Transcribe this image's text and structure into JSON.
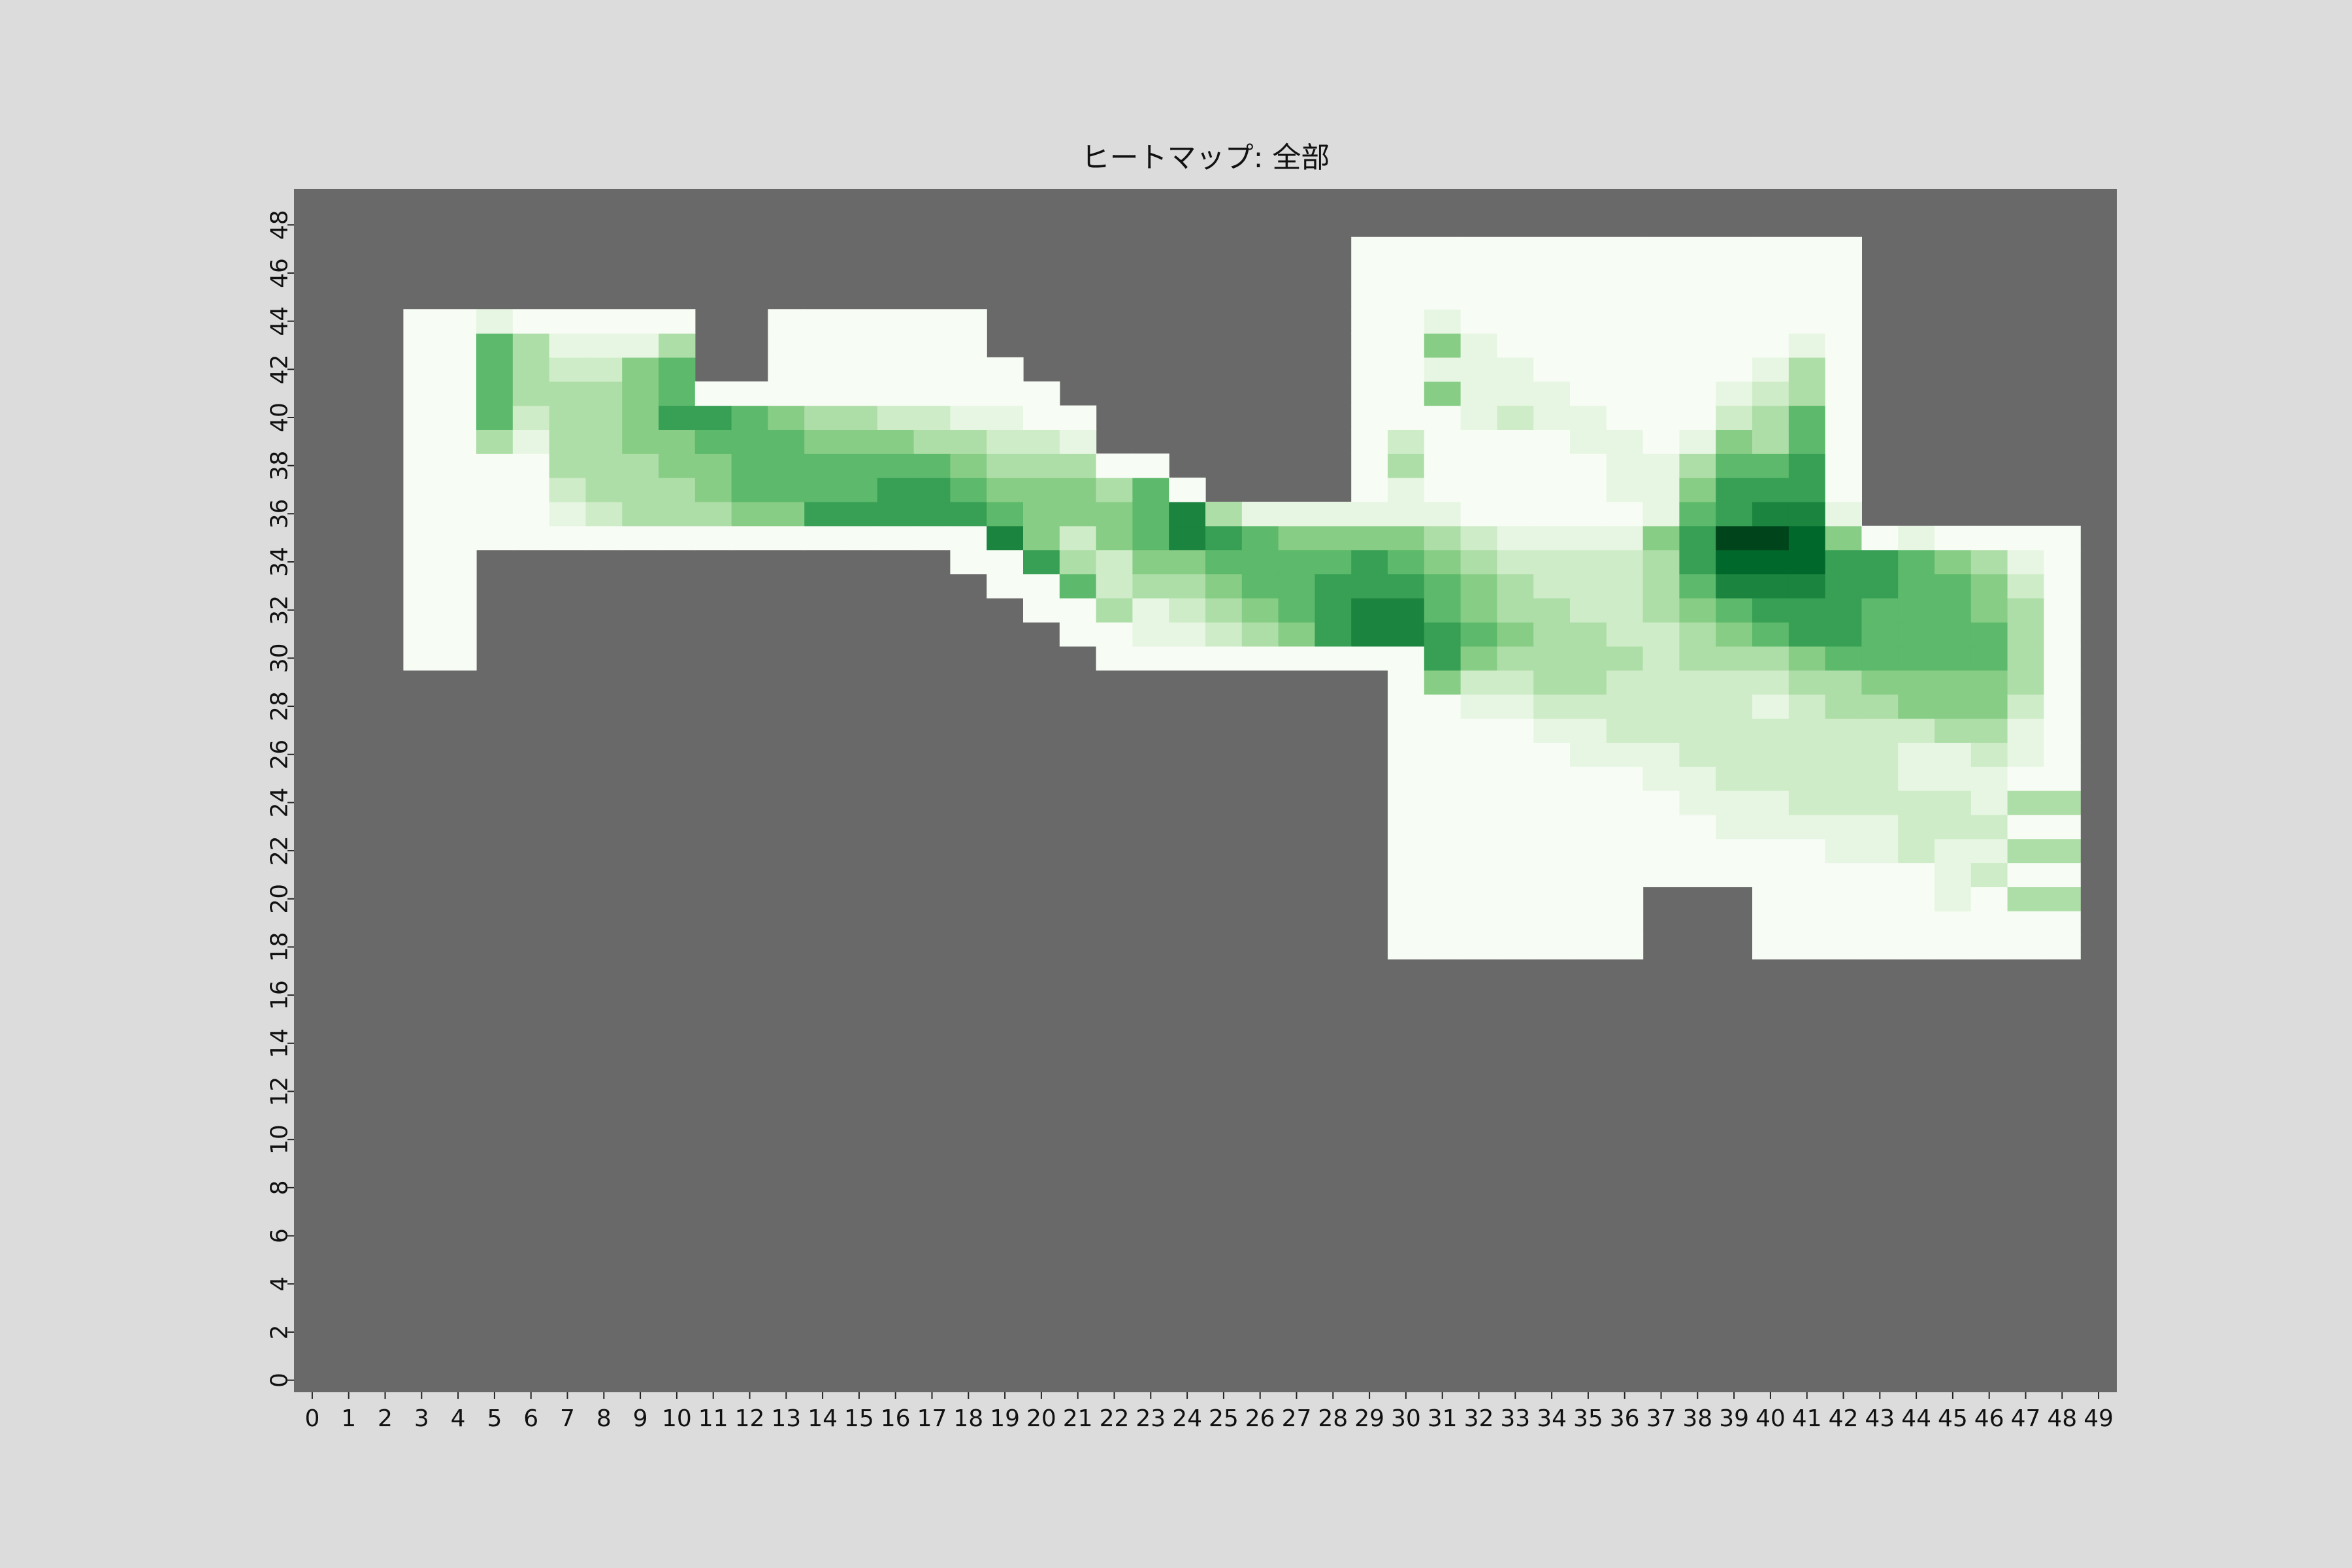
{
  "chart_data": {
    "type": "heatmap",
    "title": "ヒートマップ: 全部",
    "xlabel": "",
    "ylabel": "",
    "x_ticks": [
      "0",
      "1",
      "2",
      "3",
      "4",
      "5",
      "6",
      "7",
      "8",
      "9",
      "10",
      "11",
      "12",
      "13",
      "14",
      "15",
      "16",
      "17",
      "18",
      "19",
      "20",
      "21",
      "22",
      "23",
      "24",
      "25",
      "26",
      "27",
      "28",
      "29",
      "30",
      "31",
      "32",
      "33",
      "34",
      "35",
      "36",
      "37",
      "38",
      "39",
      "40",
      "41",
      "42",
      "43",
      "44",
      "45",
      "46",
      "47",
      "48",
      "49"
    ],
    "y_ticks": [
      "0",
      "2",
      "4",
      "6",
      "8",
      "10",
      "12",
      "14",
      "16",
      "18",
      "20",
      "22",
      "24",
      "26",
      "28",
      "30",
      "32",
      "34",
      "36",
      "38",
      "40",
      "42",
      "44",
      "46",
      "48"
    ],
    "grid_size": [
      50,
      50
    ],
    "colormap": "Greens",
    "value_range": [
      0,
      9
    ],
    "missing_color": "#696969",
    "cells": [
      {
        "x": 3,
        "y_range": [
          30,
          44
        ],
        "value": 0
      },
      {
        "x": 4,
        "y_range": [
          30,
          44
        ],
        "value": 0
      },
      {
        "x": 5,
        "y_values": {
          "35": 0,
          "36": 0,
          "37": 0,
          "38": 0,
          "39": 3,
          "40": 5,
          "41": 5,
          "42": 5,
          "43": 5,
          "44": 1
        }
      },
      {
        "x": 6,
        "y_values": {
          "35": 0,
          "36": 0,
          "37": 0,
          "38": 0,
          "39": 1,
          "40": 2,
          "41": 3,
          "42": 3,
          "43": 3,
          "44": 0
        }
      },
      {
        "x": 7,
        "y_values": {
          "35": 0,
          "36": 1,
          "37": 2,
          "38": 3,
          "39": 3,
          "40": 3,
          "41": 3,
          "42": 2,
          "43": 1,
          "44": 0
        }
      },
      {
        "x": 8,
        "y_values": {
          "35": 0,
          "36": 2,
          "37": 3,
          "38": 3,
          "39": 3,
          "40": 3,
          "41": 3,
          "42": 2,
          "43": 1,
          "44": 0
        }
      },
      {
        "x": 9,
        "y_values": {
          "35": 0,
          "36": 3,
          "37": 3,
          "38": 3,
          "39": 4,
          "40": 4,
          "41": 4,
          "42": 4,
          "43": 1,
          "44": 0
        }
      },
      {
        "x": 10,
        "y_values": {
          "35": 0,
          "36": 3,
          "37": 3,
          "38": 4,
          "39": 4,
          "40": 6,
          "41": 5,
          "42": 5,
          "43": 3,
          "44": 0
        }
      },
      {
        "x": 11,
        "y_values": {
          "35": 0,
          "36": 3,
          "37": 4,
          "38": 4,
          "39": 5,
          "40": 6,
          "41": 0
        }
      },
      {
        "x": 12,
        "y_values": {
          "35": 0,
          "36": 4,
          "37": 5,
          "38": 5,
          "39": 5,
          "40": 5,
          "41": 0
        }
      },
      {
        "x": 13,
        "y_values": {
          "35": 0,
          "36": 4,
          "37": 5,
          "38": 5,
          "39": 5,
          "40": 4,
          "41": 0,
          "42": 0,
          "43": 0,
          "44": 0
        }
      },
      {
        "x": 14,
        "y_values": {
          "35": 0,
          "36": 6,
          "37": 5,
          "38": 5,
          "39": 4,
          "40": 3,
          "41": 0,
          "42": 0,
          "43": 0,
          "44": 0
        }
      },
      {
        "x": 15,
        "y_values": {
          "35": 0,
          "36": 6,
          "37": 5,
          "38": 5,
          "39": 4,
          "40": 3,
          "41": 0,
          "42": 0,
          "43": 0,
          "44": 0
        }
      },
      {
        "x": 16,
        "y_values": {
          "35": 0,
          "36": 6,
          "37": 6,
          "38": 5,
          "39": 4,
          "40": 2,
          "41": 0,
          "42": 0,
          "43": 0,
          "44": 0
        }
      },
      {
        "x": 17,
        "y_values": {
          "35": 0,
          "36": 6,
          "37": 6,
          "38": 5,
          "39": 3,
          "40": 2,
          "41": 0,
          "42": 0,
          "43": 0,
          "44": 0
        }
      },
      {
        "x": 18,
        "y_values": {
          "34": 0,
          "35": 0,
          "36": 6,
          "37": 5,
          "38": 4,
          "39": 3,
          "40": 1,
          "41": 0,
          "42": 0,
          "43": 0,
          "44": 0
        }
      },
      {
        "x": 19,
        "y_values": {
          "33": 0,
          "34": 0,
          "35": 7,
          "36": 5,
          "37": 4,
          "38": 3,
          "39": 2,
          "40": 1,
          "41": 0,
          "42": 0
        }
      },
      {
        "x": 20,
        "y_values": {
          "32": 0,
          "33": 0,
          "34": 6,
          "35": 4,
          "36": 4,
          "37": 4,
          "38": 3,
          "39": 2,
          "40": 0,
          "41": 0
        }
      },
      {
        "x": 21,
        "y_values": {
          "31": 0,
          "32": 0,
          "33": 5,
          "34": 3,
          "35": 2,
          "36": 4,
          "37": 4,
          "38": 3,
          "39": 1,
          "40": 0
        }
      },
      {
        "x": 22,
        "y_values": {
          "30": 0,
          "31": 0,
          "32": 3,
          "33": 2,
          "34": 2,
          "35": 4,
          "36": 4,
          "37": 3,
          "38": 0
        }
      },
      {
        "x": 23,
        "y_values": {
          "30": 0,
          "31": 1,
          "32": 1,
          "33": 3,
          "34": 4,
          "35": 5,
          "36": 5,
          "37": 5,
          "38": 0
        }
      },
      {
        "x": 24,
        "y_values": {
          "30": 0,
          "31": 1,
          "32": 2,
          "33": 3,
          "34": 4,
          "35": 7,
          "36": 7,
          "37": 0
        }
      },
      {
        "x": 25,
        "y_values": {
          "30": 0,
          "31": 2,
          "32": 3,
          "33": 4,
          "34": 5,
          "35": 6,
          "36": 3
        }
      },
      {
        "x": 26,
        "y_values": {
          "30": 0,
          "31": 3,
          "32": 4,
          "33": 5,
          "34": 5,
          "35": 5,
          "36": 1
        }
      },
      {
        "x": 27,
        "y_values": {
          "30": 0,
          "31": 4,
          "32": 5,
          "33": 5,
          "34": 5,
          "35": 4,
          "36": 1
        }
      },
      {
        "x": 28,
        "y_values": {
          "30": 0,
          "31": 6,
          "32": 6,
          "33": 6,
          "34": 5,
          "35": 4,
          "36": 1
        }
      },
      {
        "x": 29,
        "y_values": {
          "30": 0,
          "31": 7,
          "32": 7,
          "33": 6,
          "34": 6,
          "35": 4,
          "36": 1,
          "37": 0,
          "38": 0,
          "39": 0,
          "40": 0,
          "41": 0,
          "42": 0,
          "43": 0,
          "44": 0,
          "45": 0,
          "46": 0,
          "47": 0
        }
      },
      {
        "x": 30,
        "y_range_fill": [
          18,
          47
        ],
        "value": 0,
        "y_values": {
          "29": 0,
          "30": 0,
          "31": 7,
          "32": 7,
          "33": 6,
          "34": 5,
          "35": 4,
          "36": 1,
          "37": 1,
          "38": 3,
          "39": 2
        }
      },
      {
        "x": 31,
        "y_range_fill": [
          18,
          47
        ],
        "value": 0,
        "y_values": {
          "29": 4,
          "30": 6,
          "31": 6,
          "32": 5,
          "33": 5,
          "34": 4,
          "35": 3,
          "36": 1,
          "41": 4,
          "43": 4,
          "44": 1,
          "42": 1
        }
      },
      {
        "x": 32,
        "y_range_fill": [
          18,
          47
        ],
        "value": 0,
        "y_values": {
          "28": 1,
          "29": 2,
          "30": 4,
          "31": 5,
          "32": 4,
          "33": 4,
          "34": 3,
          "35": 2,
          "40": 1,
          "41": 1,
          "42": 1,
          "43": 1
        }
      },
      {
        "x": 33,
        "y_range_fill": [
          18,
          47
        ],
        "value": 0,
        "y_values": {
          "27": 0,
          "28": 1,
          "29": 2,
          "30": 3,
          "31": 4,
          "32": 3,
          "33": 3,
          "34": 2,
          "35": 1,
          "40": 2,
          "41": 1,
          "42": 1
        }
      },
      {
        "x": 34,
        "y_range_fill": [
          18,
          47
        ],
        "value": 0,
        "y_values": {
          "27": 1,
          "28": 2,
          "29": 3,
          "30": 3,
          "31": 3,
          "32": 3,
          "33": 2,
          "34": 2,
          "35": 1,
          "40": 1,
          "41": 1
        }
      },
      {
        "x": 35,
        "y_range_fill": [
          18,
          47
        ],
        "value": 0,
        "y_values": {
          "26": 1,
          "27": 1,
          "28": 2,
          "29": 3,
          "30": 3,
          "31": 3,
          "32": 2,
          "33": 2,
          "34": 2,
          "35": 1,
          "39": 1,
          "40": 1
        }
      },
      {
        "x": 36,
        "y_range_fill": [
          18,
          47
        ],
        "value": 0,
        "y_values": {
          "25": 0,
          "26": 1,
          "27": 2,
          "28": 2,
          "29": 2,
          "30": 3,
          "31": 2,
          "32": 2,
          "33": 2,
          "34": 2,
          "35": 1,
          "37": 1,
          "38": 1,
          "39": 1
        }
      },
      {
        "x": 37,
        "y_range_fill": [
          21,
          47
        ],
        "value": 0,
        "y_values": {
          "25": 1,
          "26": 1,
          "27": 2,
          "28": 2,
          "29": 2,
          "30": 2,
          "31": 2,
          "32": 3,
          "33": 3,
          "34": 3,
          "35": 4,
          "36": 1,
          "37": 1,
          "38": 1
        }
      },
      {
        "x": 38,
        "y_range_fill": [
          21,
          47
        ],
        "value": 0,
        "y_values": {
          "24": 1,
          "25": 1,
          "26": 2,
          "27": 2,
          "28": 2,
          "29": 2,
          "30": 3,
          "31": 3,
          "32": 4,
          "33": 5,
          "34": 6,
          "35": 6,
          "36": 5,
          "37": 4,
          "38": 3,
          "39": 1
        }
      },
      {
        "x": 39,
        "y_range_fill": [
          21,
          47
        ],
        "value": 0,
        "y_values": {
          "23": 1,
          "24": 1,
          "25": 2,
          "26": 2,
          "27": 2,
          "28": 2,
          "29": 2,
          "30": 3,
          "31": 4,
          "32": 5,
          "33": 7,
          "34": 8,
          "35": 9,
          "36": 6,
          "37": 6,
          "38": 5,
          "39": 4,
          "40": 2,
          "41": 1
        }
      },
      {
        "x": 40,
        "y_range_fill": [
          18,
          47
        ],
        "value": 0,
        "y_values": {
          "23": 1,
          "24": 1,
          "25": 2,
          "26": 2,
          "27": 2,
          "28": 1,
          "29": 2,
          "30": 3,
          "31": 5,
          "32": 6,
          "33": 7,
          "34": 8,
          "35": 9,
          "36": 7,
          "37": 6,
          "38": 5,
          "39": 3,
          "40": 3,
          "41": 2,
          "42": 1
        }
      },
      {
        "x": 41,
        "y_range_fill": [
          18,
          47
        ],
        "value": 0,
        "y_values": {
          "22": 0,
          "23": 1,
          "24": 2,
          "25": 2,
          "26": 2,
          "27": 2,
          "28": 2,
          "29": 3,
          "30": 4,
          "31": 6,
          "32": 6,
          "33": 7,
          "34": 8,
          "35": 8,
          "36": 7,
          "37": 6,
          "38": 6,
          "39": 5,
          "40": 5,
          "41": 3,
          "42": 3,
          "43": 1
        }
      },
      {
        "x": 42,
        "y_range_fill": [
          18,
          47
        ],
        "value": 0,
        "y_values": {
          "22": 1,
          "23": 1,
          "24": 2,
          "25": 2,
          "26": 2,
          "27": 2,
          "28": 3,
          "29": 3,
          "30": 5,
          "31": 6,
          "32": 6,
          "33": 6,
          "34": 6,
          "35": 4,
          "36": 1
        }
      },
      {
        "x": 43,
        "y_values": {
          "18": 0,
          "19": 0,
          "20": 0,
          "21": 0,
          "22": 1,
          "23": 1,
          "24": 2,
          "25": 2,
          "26": 2,
          "27": 2,
          "28": 3,
          "29": 4,
          "30": 5,
          "31": 5,
          "32": 5,
          "33": 6,
          "34": 6,
          "35": 0
        }
      },
      {
        "x": 44,
        "y_values": {
          "18": 0,
          "19": 0,
          "20": 0,
          "21": 0,
          "22": 2,
          "23": 2,
          "24": 2,
          "25": 1,
          "26": 1,
          "27": 2,
          "28": 4,
          "29": 4,
          "30": 5,
          "31": 5,
          "32": 5,
          "33": 5,
          "34": 5,
          "35": 1
        }
      },
      {
        "x": 45,
        "y_values": {
          "18": 0,
          "19": 0,
          "20": 1,
          "21": 1,
          "22": 1,
          "23": 2,
          "24": 2,
          "25": 1,
          "26": 1,
          "27": 3,
          "28": 4,
          "29": 4,
          "30": 5,
          "31": 5,
          "32": 5,
          "33": 5,
          "34": 4,
          "35": 0
        }
      },
      {
        "x": 46,
        "y_values": {
          "18": 0,
          "19": 0,
          "20": 0,
          "21": 2,
          "22": 1,
          "23": 2,
          "24": 1,
          "25": 1,
          "26": 2,
          "27": 3,
          "28": 4,
          "29": 4,
          "30": 5,
          "31": 5,
          "32": 4,
          "33": 4,
          "34": 3,
          "35": 0
        }
      },
      {
        "x": 47,
        "y_values": {
          "18": 0,
          "19": 0,
          "20": 3,
          "21": 0,
          "22": 3,
          "23": 0,
          "24": 3,
          "25": 0,
          "26": 1,
          "27": 1,
          "28": 2,
          "29": 3,
          "30": 3,
          "31": 3,
          "32": 3,
          "33": 2,
          "34": 1,
          "35": 0
        }
      },
      {
        "x": 48,
        "y_values": {
          "18": 0,
          "19": 0,
          "20": 3,
          "21": 0,
          "22": 3,
          "23": 0,
          "24": 3,
          "25": 0,
          "26": 0,
          "27": 0,
          "28": 0,
          "29": 0,
          "30": 0,
          "31": 0,
          "32": 0,
          "33": 0,
          "34": 0,
          "35": 0
        }
      }
    ]
  }
}
